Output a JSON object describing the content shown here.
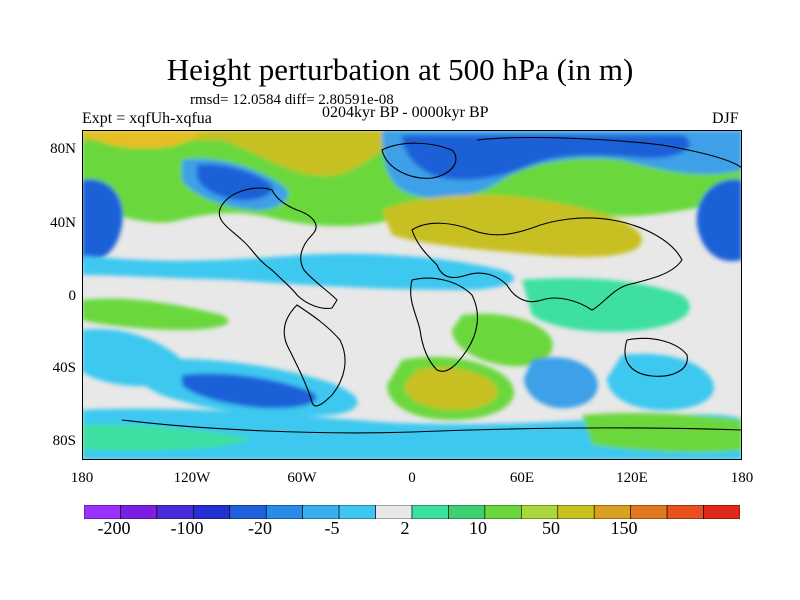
{
  "title": "Height perturbation at 500 hPa (in m)",
  "stats": "rmsd= 12.0584 diff= 2.80591e-08",
  "left_label": "Expt = xqfUh-xqfua",
  "center_label": "0204kyr BP - 0000kyr BP",
  "right_label": "DJF",
  "lat_ticks": [
    "80N",
    "40N",
    "0",
    "40S",
    "80S"
  ],
  "lon_ticks": [
    "180",
    "120W",
    "60W",
    "0",
    "60E",
    "120E",
    "180"
  ],
  "colorbar": {
    "colors": [
      "#9b30ff",
      "#7a1fe0",
      "#4b2ad8",
      "#2430d0",
      "#1e60d8",
      "#2a8ae8",
      "#38aef0",
      "#3cc8f0",
      "#e8e8e8",
      "#3ce0a0",
      "#3cd070",
      "#6ad83c",
      "#a8d83c",
      "#c8c020",
      "#d8a020",
      "#e07820",
      "#e85020",
      "#e02818"
    ],
    "labels": [
      "-200",
      "-100",
      "-20",
      "-5",
      "2",
      "10",
      "50",
      "150"
    ]
  },
  "colors": {
    "background": "#e8e8e8",
    "coast": "#000000"
  }
}
